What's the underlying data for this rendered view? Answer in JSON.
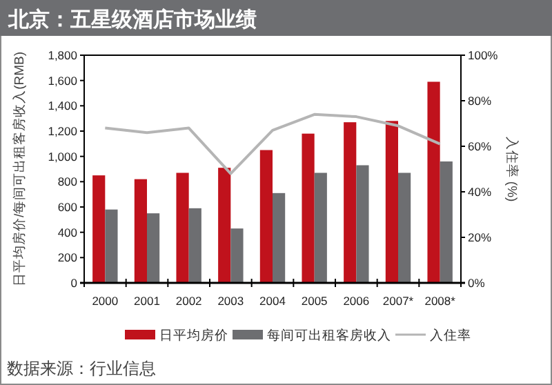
{
  "chart_data": {
    "type": "bar",
    "title": "北京：五星级酒店市场业绩",
    "ylabel": "日平均房价/每间可出租客房收入(RMB)",
    "y2label": "入住率 (%)",
    "categories": [
      "2000",
      "2001",
      "2002",
      "2003",
      "2004",
      "2005",
      "2006",
      "2007*",
      "2008*"
    ],
    "series": [
      {
        "name": "日平均房价",
        "color": "#c0121c",
        "values": [
          850,
          820,
          870,
          910,
          1050,
          1180,
          1270,
          1280,
          1590
        ]
      },
      {
        "name": "每间可出租客房收入",
        "color": "#6d6e71",
        "values": [
          580,
          550,
          590,
          430,
          710,
          870,
          930,
          870,
          960
        ]
      },
      {
        "name": "入住率",
        "type": "line",
        "axis": "y2",
        "color": "#b5b5b5",
        "values": [
          68,
          66,
          68,
          48,
          67,
          74,
          73,
          69,
          61
        ]
      }
    ],
    "ylim": [
      0,
      1800
    ],
    "yticks": [
      0,
      200,
      400,
      600,
      800,
      {
        "value": 1000,
        "label": "1,000"
      },
      {
        "value": 1200,
        "label": "1,200"
      },
      {
        "value": 1400,
        "label": "1,400"
      },
      {
        "value": 1600,
        "label": "1,600"
      },
      {
        "value": 1800,
        "label": "1,800"
      }
    ],
    "y2lim": [
      0,
      100
    ],
    "y2ticks": [
      {
        "value": 0,
        "label": "0%"
      },
      {
        "value": 20,
        "label": "20%"
      },
      {
        "value": 40,
        "label": "40%"
      },
      {
        "value": 60,
        "label": "60%"
      },
      {
        "value": 80,
        "label": "80%"
      },
      {
        "value": 100,
        "label": "100%"
      }
    ],
    "grid": false,
    "legend": "bottom",
    "annotations": [
      "数据来源：行业信息"
    ]
  }
}
